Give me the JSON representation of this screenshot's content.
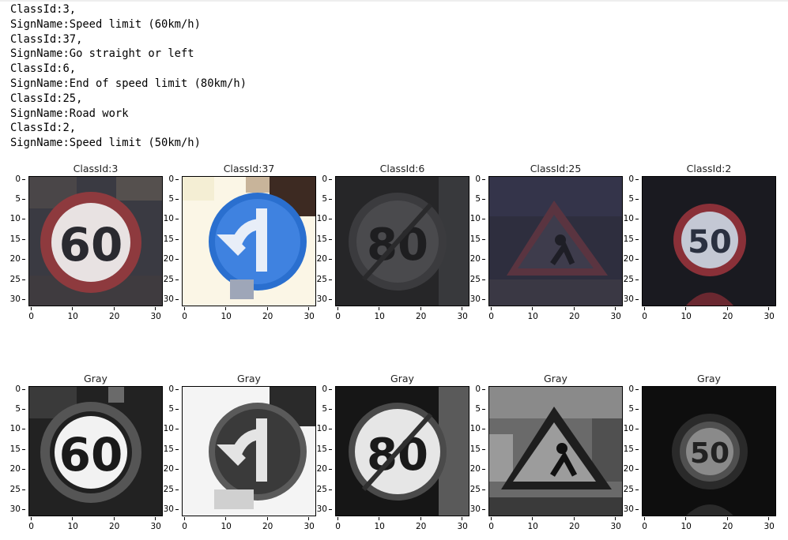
{
  "output": {
    "lines": [
      "ClassId:3,",
      "SignName:Speed limit (60km/h)",
      "ClassId:37,",
      "SignName:Go straight or left",
      "ClassId:6,",
      "SignName:End of speed limit (80km/h)",
      "ClassId:25,",
      "SignName:Road work",
      "ClassId:2,",
      "SignName:Speed limit (50km/h)"
    ]
  },
  "figure": {
    "y_ticks": [
      "0",
      "5",
      "10",
      "15",
      "20",
      "25",
      "30"
    ],
    "x_ticks": [
      "0",
      "10",
      "20",
      "30"
    ],
    "color_row": [
      {
        "title": "ClassId:3",
        "icon": "speed-limit-60-sign"
      },
      {
        "title": "ClassId:37",
        "icon": "go-straight-or-left-sign"
      },
      {
        "title": "ClassId:6",
        "icon": "end-of-speed-limit-80-sign"
      },
      {
        "title": "ClassId:25",
        "icon": "road-work-sign"
      },
      {
        "title": "ClassId:2",
        "icon": "speed-limit-50-sign"
      }
    ],
    "gray_row": [
      {
        "title": "Gray",
        "icon": "speed-limit-60-sign-gray"
      },
      {
        "title": "Gray",
        "icon": "go-straight-or-left-sign-gray"
      },
      {
        "title": "Gray",
        "icon": "end-of-speed-limit-80-sign-gray"
      },
      {
        "title": "Gray",
        "icon": "road-work-sign-gray"
      },
      {
        "title": "Gray",
        "icon": "speed-limit-50-sign-gray"
      }
    ],
    "sign_text": {
      "s60": "60",
      "s80": "80",
      "s50": "50"
    }
  }
}
